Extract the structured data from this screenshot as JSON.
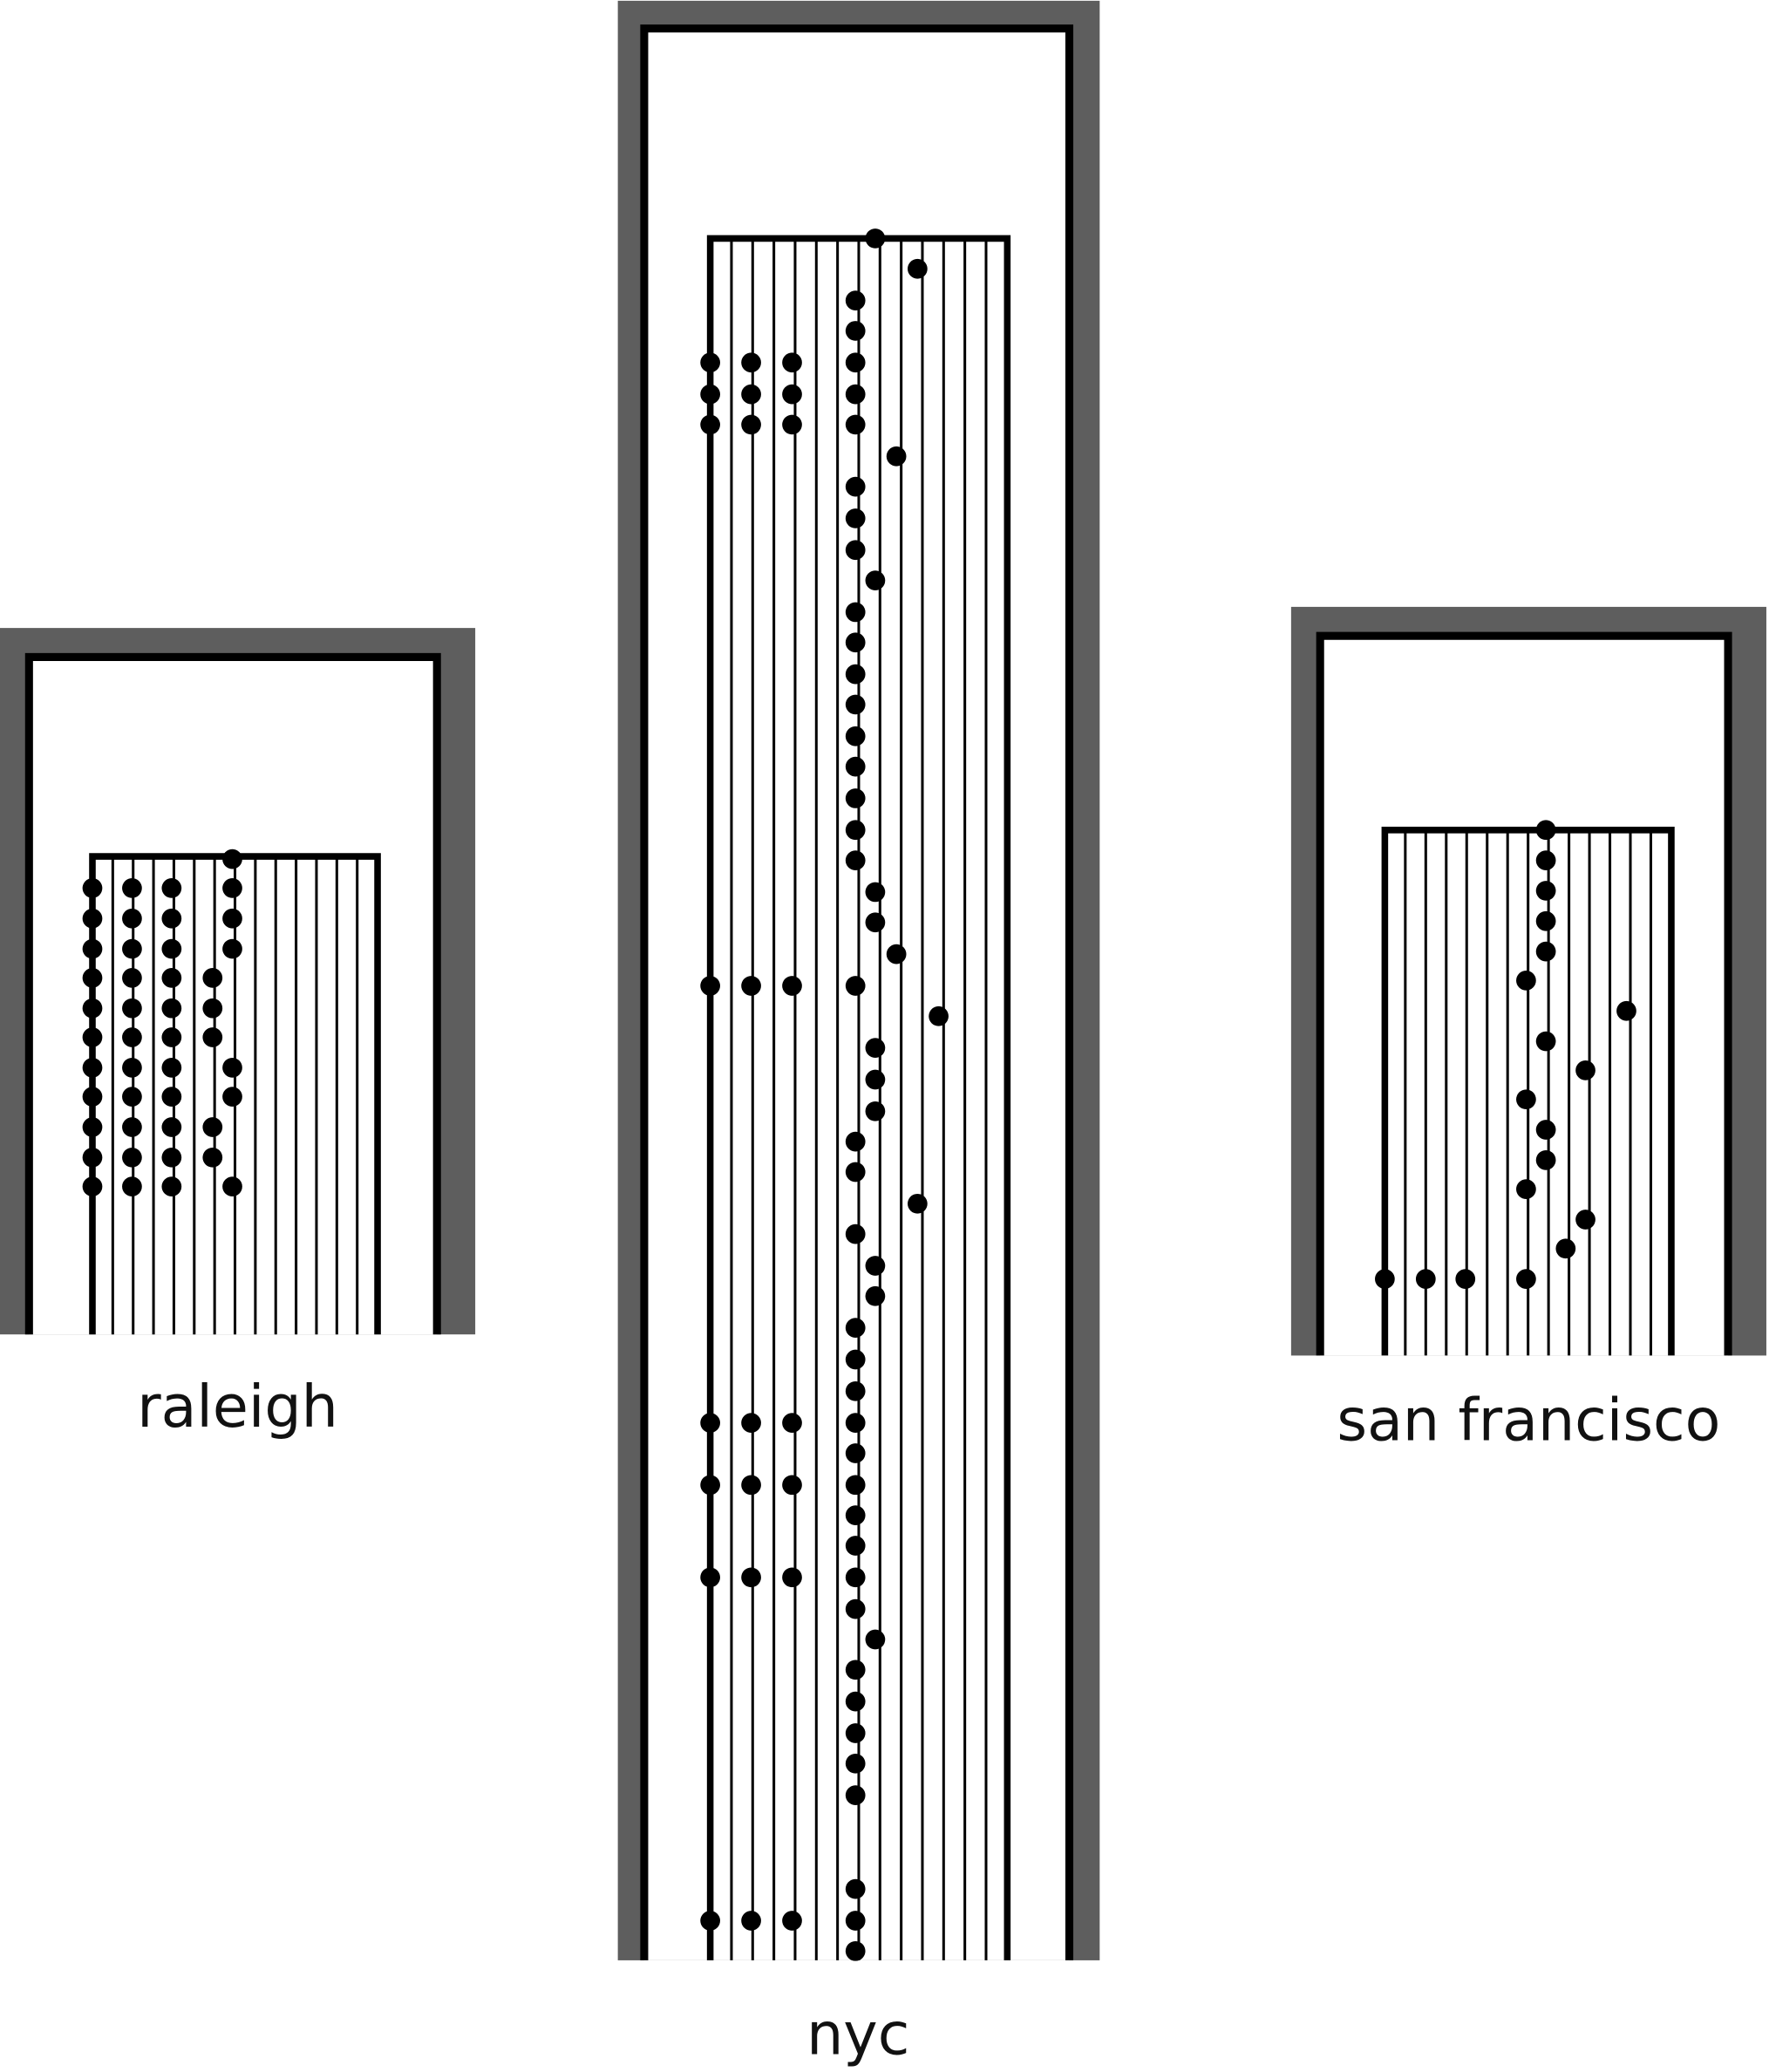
{
  "buildings": [
    {
      "label": "raleigh"
    },
    {
      "label": "nyc"
    },
    {
      "label": "san francisco"
    }
  ]
}
